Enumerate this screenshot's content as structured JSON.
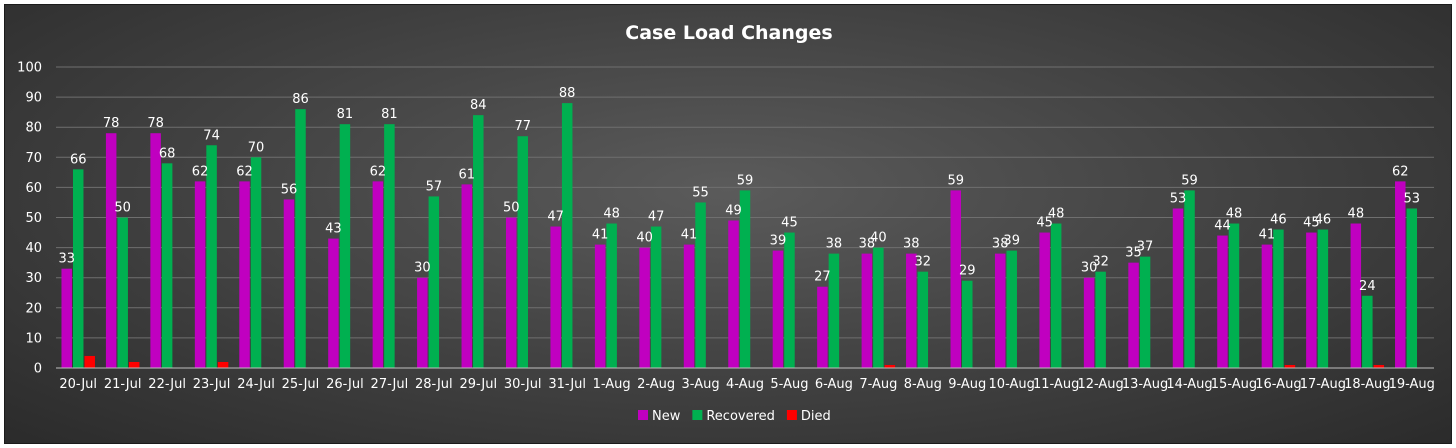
{
  "chart_data": {
    "type": "bar",
    "title": "Case Load Changes",
    "categories": [
      "20-Jul",
      "21-Jul",
      "22-Jul",
      "23-Jul",
      "24-Jul",
      "25-Jul",
      "26-Jul",
      "27-Jul",
      "28-Jul",
      "29-Jul",
      "30-Jul",
      "31-Jul",
      "1-Aug",
      "2-Aug",
      "3-Aug",
      "4-Aug",
      "5-Aug",
      "6-Aug",
      "7-Aug",
      "8-Aug",
      "9-Aug",
      "10-Aug",
      "11-Aug",
      "12-Aug",
      "13-Aug",
      "14-Aug",
      "15-Aug",
      "16-Aug",
      "17-Aug",
      "18-Aug",
      "19-Aug"
    ],
    "series": [
      {
        "name": "New",
        "color": "#c000c0",
        "values": [
          33,
          78,
          78,
          62,
          62,
          56,
          43,
          62,
          30,
          61,
          50,
          47,
          41,
          40,
          41,
          49,
          39,
          27,
          38,
          38,
          59,
          38,
          45,
          30,
          35,
          53,
          44,
          41,
          45,
          48,
          62
        ],
        "labels": true
      },
      {
        "name": "Recovered",
        "color": "#00b050",
        "values": [
          66,
          50,
          68,
          74,
          70,
          86,
          81,
          81,
          57,
          84,
          77,
          88,
          48,
          47,
          55,
          59,
          45,
          38,
          40,
          32,
          29,
          39,
          48,
          32,
          37,
          59,
          48,
          46,
          46,
          24,
          53
        ],
        "labels": true
      },
      {
        "name": "Died",
        "color": "#ff0000",
        "values": [
          4,
          2,
          0,
          2,
          0,
          0,
          0,
          0,
          0,
          0,
          0,
          0,
          0,
          0,
          0,
          0,
          0,
          0,
          1,
          0,
          0,
          0,
          0,
          0,
          0,
          0,
          0,
          1,
          0,
          1,
          0
        ],
        "labels": false
      }
    ],
    "ylim": [
      0,
      100
    ],
    "yticks": [
      "0",
      "10",
      "20",
      "30",
      "40",
      "50",
      "60",
      "70",
      "80",
      "90",
      "100"
    ],
    "grid": true,
    "legend": "bottom"
  }
}
